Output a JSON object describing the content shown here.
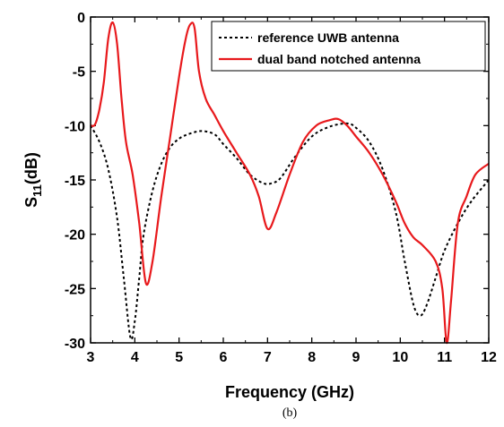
{
  "chart_data": {
    "type": "line",
    "xlabel": "Frequency (GHz)",
    "ylabel_main": "S",
    "ylabel_sub": "11",
    "ylabel_suffix": "(dB)",
    "xlim": [
      3,
      12
    ],
    "ylim": [
      -30,
      0
    ],
    "x_ticks": [
      3,
      4,
      5,
      6,
      7,
      8,
      9,
      10,
      11,
      12
    ],
    "y_ticks": [
      0,
      -5,
      -10,
      -15,
      -20,
      -25,
      -30
    ],
    "legend_position": "top-right",
    "caption": "(b)",
    "series": [
      {
        "name": "reference UWB antenna",
        "color": "#000000",
        "style": "dotted",
        "x": [
          3.0,
          3.2,
          3.4,
          3.6,
          3.75,
          3.9,
          4.0,
          4.1,
          4.2,
          4.4,
          4.6,
          4.8,
          5.0,
          5.2,
          5.5,
          5.8,
          6.0,
          6.3,
          6.6,
          6.9,
          7.1,
          7.3,
          7.6,
          8.0,
          8.4,
          8.8,
          9.0,
          9.3,
          9.6,
          9.9,
          10.1,
          10.3,
          10.45,
          10.6,
          10.8,
          11.0,
          11.3,
          11.6,
          12.0
        ],
        "y": [
          -10.0,
          -11.5,
          -14.0,
          -18.5,
          -24.0,
          -29.5,
          -28.0,
          -24.0,
          -20.0,
          -16.0,
          -13.5,
          -12.0,
          -11.2,
          -10.8,
          -10.5,
          -10.8,
          -11.7,
          -13.0,
          -14.5,
          -15.3,
          -15.3,
          -14.8,
          -13.0,
          -11.0,
          -10.1,
          -9.8,
          -10.2,
          -11.5,
          -14.0,
          -18.0,
          -22.5,
          -26.5,
          -27.5,
          -26.5,
          -24.0,
          -21.5,
          -19.0,
          -17.0,
          -15.0
        ]
      },
      {
        "name": "dual band notched antenna",
        "color": "#e8191c",
        "style": "solid",
        "x": [
          3.0,
          3.1,
          3.2,
          3.3,
          3.4,
          3.5,
          3.6,
          3.7,
          3.8,
          3.95,
          4.1,
          4.25,
          4.4,
          4.6,
          4.8,
          5.0,
          5.15,
          5.25,
          5.35,
          5.45,
          5.6,
          5.8,
          6.0,
          6.3,
          6.6,
          6.8,
          7.0,
          7.2,
          7.5,
          7.8,
          8.1,
          8.4,
          8.6,
          8.8,
          9.0,
          9.3,
          9.6,
          9.9,
          10.1,
          10.3,
          10.5,
          10.8,
          10.95,
          11.05,
          11.15,
          11.3,
          11.5,
          11.7,
          12.0
        ],
        "y": [
          -10.0,
          -9.9,
          -8.5,
          -6.0,
          -2.0,
          -0.5,
          -2.5,
          -7.5,
          -11.5,
          -14.5,
          -19.0,
          -24.5,
          -22.5,
          -16.5,
          -11.0,
          -5.5,
          -2.0,
          -0.7,
          -1.0,
          -5.0,
          -7.5,
          -9.0,
          -10.5,
          -12.5,
          -14.5,
          -16.5,
          -19.5,
          -18.0,
          -14.5,
          -11.5,
          -10.0,
          -9.5,
          -9.4,
          -10.0,
          -11.0,
          -12.5,
          -14.5,
          -17.0,
          -19.0,
          -20.3,
          -21.0,
          -22.5,
          -25.0,
          -30.0,
          -26.0,
          -19.0,
          -16.5,
          -14.5,
          -13.5
        ]
      }
    ]
  }
}
